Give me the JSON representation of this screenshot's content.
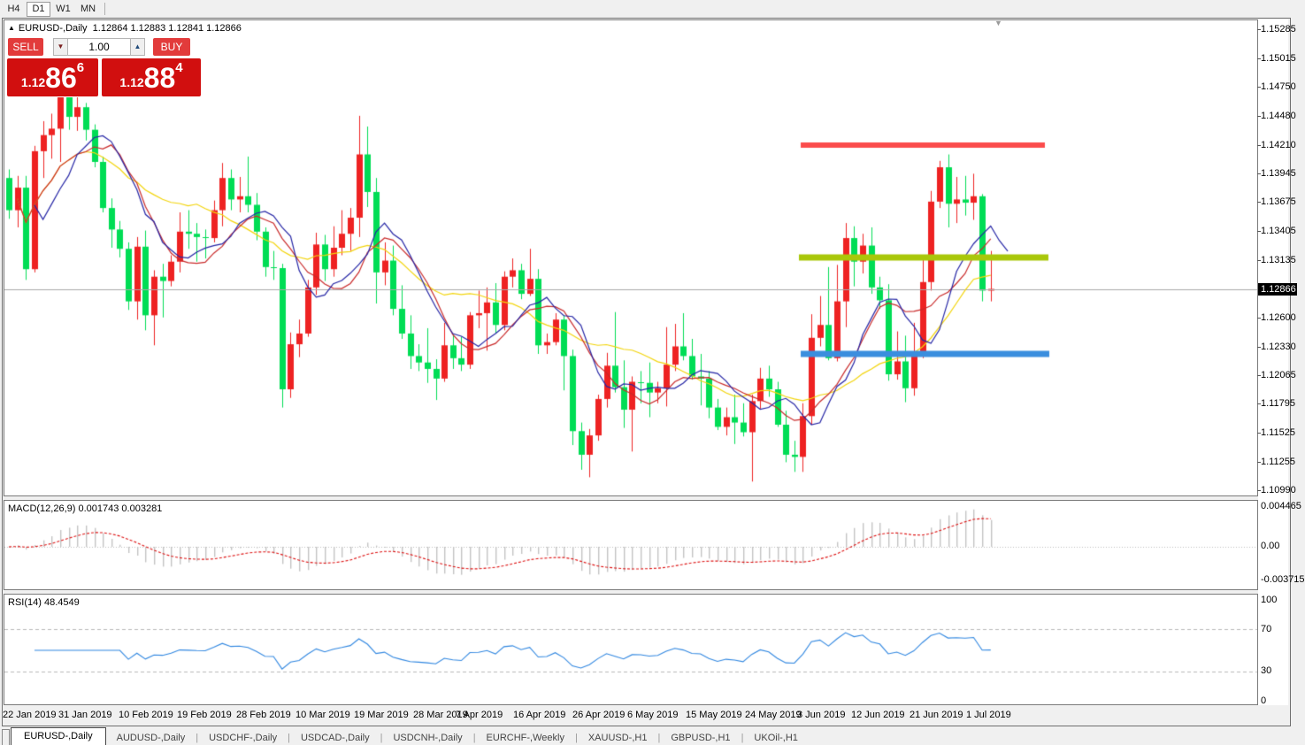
{
  "toolbar": {
    "timeframes": [
      {
        "label": "H4",
        "active": false
      },
      {
        "label": "D1",
        "active": true
      },
      {
        "label": "W1",
        "active": false
      },
      {
        "label": "MN",
        "active": false
      }
    ]
  },
  "header": {
    "symbol": "EURUSD-,Daily",
    "ohlc": "1.12864 1.12883 1.12841 1.12866"
  },
  "trade_panel": {
    "sell_label": "SELL",
    "buy_label": "BUY",
    "volume": "1.00",
    "sell_price": {
      "prefix": "1.12",
      "main": "86",
      "pips": "6"
    },
    "buy_price": {
      "prefix": "1.12",
      "main": "88",
      "pips": "4"
    },
    "button_color": "#e23b3b",
    "price_box_color": "#d10f0f"
  },
  "price_axis": {
    "labels": [
      "1.15285",
      "1.15015",
      "1.14750",
      "1.14480",
      "1.14210",
      "1.13945",
      "1.13675",
      "1.13405",
      "1.13135",
      "1.12600",
      "1.12330",
      "1.12065",
      "1.11795",
      "1.11525",
      "1.11255",
      "1.10990"
    ],
    "current": "1.12866"
  },
  "date_axis": {
    "labels": [
      "22 Jan 2019",
      "31 Jan 2019",
      "10 Feb 2019",
      "19 Feb 2019",
      "28 Feb 2019",
      "10 Mar 2019",
      "19 Mar 2019",
      "28 Mar 2019",
      "7 Apr 2019",
      "16 Apr 2019",
      "26 Apr 2019",
      "6 May 2019",
      "15 May 2019",
      "24 May 2019",
      "3 Jun 2019",
      "12 Jun 2019",
      "21 Jun 2019",
      "1 Jul 2019"
    ]
  },
  "indicators": {
    "macd": {
      "title": "MACD(12,26,9)",
      "values": "0.001743 0.003281",
      "axis": [
        "0.004465",
        "0.00",
        "-0.003715"
      ],
      "histogram_color": "#c3c3c3",
      "signal_color": "#dd1111"
    },
    "rsi": {
      "title": "RSI(14)",
      "value": "48.4549",
      "axis": [
        "100",
        "70",
        "30",
        "0"
      ],
      "levels": [
        70,
        30
      ],
      "color": "#2f86e0"
    }
  },
  "tabs": {
    "items": [
      {
        "label": "EURUSD-,Daily",
        "active": true
      },
      {
        "label": "AUDUSD-,Daily",
        "active": false
      },
      {
        "label": "USDCHF-,Daily",
        "active": false
      },
      {
        "label": "USDCAD-,Daily",
        "active": false
      },
      {
        "label": "USDCNH-,Daily",
        "active": false
      },
      {
        "label": "EURCHF-,Weekly",
        "active": false
      },
      {
        "label": "XAUUSD-,H1",
        "active": false
      },
      {
        "label": "GBPUSD-,H1",
        "active": false
      },
      {
        "label": "UKOil-,H1",
        "active": false
      }
    ]
  },
  "chart_data": {
    "type": "candlestick",
    "symbol": "EURUSD-",
    "timeframe": "Daily",
    "title": "EURUSD-,Daily",
    "ohlc_display": {
      "open": "1.12864",
      "high": "1.12883",
      "low": "1.12841",
      "close": "1.12866"
    },
    "ylim": [
      1.1094,
      1.1537
    ],
    "x_range": [
      "22 Jan 2019",
      "2 Jul 2019"
    ],
    "bull_color": "#ee2222",
    "bear_color": "#00dd55",
    "bid_line_color": "#a8a8a8",
    "current_price": 1.12866,
    "hlines": [
      {
        "price": 1.1421,
        "color": "#fb4b4b",
        "role": "resistance"
      },
      {
        "price": 1.1316,
        "color": "#a9c70a",
        "role": "mid-level"
      },
      {
        "price": 1.1226,
        "color": "#3a8ede",
        "role": "support"
      }
    ],
    "moving_averages": [
      {
        "name": "fast",
        "color": "#2525a5",
        "period": 8,
        "shift": 2
      },
      {
        "name": "medium",
        "color": "#c92a2a",
        "period": 10,
        "shift": 0
      },
      {
        "name": "slow",
        "color": "#f2d40c",
        "period": 20,
        "shift": 0
      }
    ],
    "candles": [
      [
        1.139,
        1.1398,
        1.1352,
        1.136
      ],
      [
        1.136,
        1.1392,
        1.1344,
        1.1381
      ],
      [
        1.1381,
        1.1392,
        1.1295,
        1.1305
      ],
      [
        1.1305,
        1.142,
        1.1302,
        1.1415
      ],
      [
        1.1415,
        1.1443,
        1.139,
        1.143
      ],
      [
        1.143,
        1.145,
        1.1408,
        1.1436
      ],
      [
        1.1436,
        1.1502,
        1.1405,
        1.148
      ],
      [
        1.148,
        1.1514,
        1.1435,
        1.1447
      ],
      [
        1.1447,
        1.1489,
        1.1434,
        1.1456
      ],
      [
        1.1456,
        1.146,
        1.1425,
        1.1435
      ],
      [
        1.1435,
        1.144,
        1.14,
        1.1405
      ],
      [
        1.1405,
        1.141,
        1.1358,
        1.1362
      ],
      [
        1.1362,
        1.1371,
        1.1325,
        1.1342
      ],
      [
        1.1342,
        1.135,
        1.1316,
        1.1324
      ],
      [
        1.1324,
        1.133,
        1.1267,
        1.1275
      ],
      [
        1.1275,
        1.1335,
        1.1258,
        1.1326
      ],
      [
        1.1326,
        1.1341,
        1.1248,
        1.1262
      ],
      [
        1.1262,
        1.1304,
        1.1234,
        1.1298
      ],
      [
        1.1298,
        1.131,
        1.126,
        1.1294
      ],
      [
        1.1294,
        1.1318,
        1.1289,
        1.1312
      ],
      [
        1.1312,
        1.1358,
        1.1302,
        1.134
      ],
      [
        1.134,
        1.136,
        1.1324,
        1.1338
      ],
      [
        1.1338,
        1.1348,
        1.1312,
        1.1335
      ],
      [
        1.1335,
        1.1342,
        1.1315,
        1.1334
      ],
      [
        1.1334,
        1.1369,
        1.133,
        1.136
      ],
      [
        1.136,
        1.1404,
        1.1345,
        1.139
      ],
      [
        1.139,
        1.1398,
        1.136,
        1.137
      ],
      [
        1.137,
        1.1391,
        1.1358,
        1.1373
      ],
      [
        1.1373,
        1.141,
        1.1358,
        1.1365
      ],
      [
        1.1365,
        1.1376,
        1.1332,
        1.134
      ],
      [
        1.134,
        1.1344,
        1.1298,
        1.1307
      ],
      [
        1.1307,
        1.1322,
        1.1295,
        1.1306
      ],
      [
        1.1306,
        1.131,
        1.1176,
        1.1193
      ],
      [
        1.1193,
        1.1246,
        1.1185,
        1.1235
      ],
      [
        1.1235,
        1.1258,
        1.1223,
        1.1245
      ],
      [
        1.1245,
        1.1295,
        1.1242,
        1.1288
      ],
      [
        1.1288,
        1.1339,
        1.1281,
        1.1328
      ],
      [
        1.1328,
        1.1337,
        1.1294,
        1.1305
      ],
      [
        1.1305,
        1.1345,
        1.1298,
        1.1325
      ],
      [
        1.1325,
        1.136,
        1.1318,
        1.1338
      ],
      [
        1.1338,
        1.1362,
        1.1322,
        1.1353
      ],
      [
        1.1353,
        1.1448,
        1.1335,
        1.1412
      ],
      [
        1.1412,
        1.1438,
        1.1363,
        1.1377
      ],
      [
        1.1377,
        1.139,
        1.1273,
        1.1302
      ],
      [
        1.1302,
        1.133,
        1.129,
        1.1313
      ],
      [
        1.1313,
        1.1327,
        1.1262,
        1.1268
      ],
      [
        1.1268,
        1.129,
        1.124,
        1.1245
      ],
      [
        1.1245,
        1.1262,
        1.1212,
        1.1224
      ],
      [
        1.1224,
        1.1235,
        1.121,
        1.1218
      ],
      [
        1.1218,
        1.125,
        1.1199,
        1.1212
      ],
      [
        1.1212,
        1.1221,
        1.1183,
        1.1203
      ],
      [
        1.1203,
        1.1255,
        1.12,
        1.1234
      ],
      [
        1.1234,
        1.1244,
        1.1212,
        1.1222
      ],
      [
        1.1222,
        1.1242,
        1.121,
        1.1216
      ],
      [
        1.1216,
        1.1265,
        1.1212,
        1.1262
      ],
      [
        1.1262,
        1.1285,
        1.125,
        1.1264
      ],
      [
        1.1264,
        1.1288,
        1.1229,
        1.1274
      ],
      [
        1.1274,
        1.1292,
        1.1245,
        1.1253
      ],
      [
        1.1253,
        1.1303,
        1.1248,
        1.1298
      ],
      [
        1.1298,
        1.1315,
        1.1288,
        1.1304
      ],
      [
        1.1304,
        1.131,
        1.1277,
        1.1282
      ],
      [
        1.1282,
        1.1324,
        1.128,
        1.1296
      ],
      [
        1.1296,
        1.1305,
        1.1226,
        1.1234
      ],
      [
        1.1234,
        1.1245,
        1.1226,
        1.1237
      ],
      [
        1.1237,
        1.1264,
        1.1234,
        1.1258
      ],
      [
        1.1258,
        1.1262,
        1.1192,
        1.1224
      ],
      [
        1.1224,
        1.123,
        1.1141,
        1.1154
      ],
      [
        1.1154,
        1.1162,
        1.1118,
        1.1132
      ],
      [
        1.1132,
        1.1156,
        1.1111,
        1.115
      ],
      [
        1.115,
        1.1188,
        1.1145,
        1.1184
      ],
      [
        1.1184,
        1.1227,
        1.1176,
        1.1215
      ],
      [
        1.1215,
        1.1265,
        1.119,
        1.1195
      ],
      [
        1.1195,
        1.122,
        1.1157,
        1.1174
      ],
      [
        1.1174,
        1.1205,
        1.1135,
        1.12
      ],
      [
        1.12,
        1.121,
        1.118,
        1.1199
      ],
      [
        1.1199,
        1.1218,
        1.1167,
        1.119
      ],
      [
        1.119,
        1.12,
        1.118,
        1.1194
      ],
      [
        1.1194,
        1.1251,
        1.1177,
        1.1216
      ],
      [
        1.1216,
        1.1254,
        1.121,
        1.1233
      ],
      [
        1.1233,
        1.1264,
        1.122,
        1.1224
      ],
      [
        1.1224,
        1.124,
        1.1202,
        1.1205
      ],
      [
        1.1205,
        1.1226,
        1.1178,
        1.1203
      ],
      [
        1.1203,
        1.121,
        1.1166,
        1.1176
      ],
      [
        1.1176,
        1.1184,
        1.1155,
        1.1158
      ],
      [
        1.1158,
        1.1176,
        1.115,
        1.1167
      ],
      [
        1.1167,
        1.1188,
        1.1142,
        1.1162
      ],
      [
        1.1162,
        1.118,
        1.1149,
        1.1153
      ],
      [
        1.1153,
        1.1188,
        1.1107,
        1.1182
      ],
      [
        1.1182,
        1.1213,
        1.1175,
        1.1203
      ],
      [
        1.1203,
        1.1215,
        1.1186,
        1.1193
      ],
      [
        1.1193,
        1.12,
        1.1158,
        1.116
      ],
      [
        1.116,
        1.1173,
        1.1125,
        1.1132
      ],
      [
        1.1132,
        1.1145,
        1.1116,
        1.113
      ],
      [
        1.113,
        1.118,
        1.1116,
        1.1168
      ],
      [
        1.1168,
        1.1263,
        1.116,
        1.1241
      ],
      [
        1.1241,
        1.128,
        1.1233,
        1.1253
      ],
      [
        1.1253,
        1.1307,
        1.122,
        1.1222
      ],
      [
        1.1222,
        1.1309,
        1.1219,
        1.1275
      ],
      [
        1.1275,
        1.1348,
        1.1251,
        1.1334
      ],
      [
        1.1334,
        1.1345,
        1.1289,
        1.1312
      ],
      [
        1.1312,
        1.1338,
        1.1301,
        1.1327
      ],
      [
        1.1327,
        1.1344,
        1.1282,
        1.1288
      ],
      [
        1.1288,
        1.1298,
        1.1268,
        1.1276
      ],
      [
        1.1276,
        1.1291,
        1.1201,
        1.1207
      ],
      [
        1.1207,
        1.1247,
        1.1202,
        1.1219
      ],
      [
        1.1219,
        1.1243,
        1.1181,
        1.1194
      ],
      [
        1.1194,
        1.1255,
        1.1187,
        1.1225
      ],
      [
        1.1225,
        1.1318,
        1.1222,
        1.1293
      ],
      [
        1.1293,
        1.1378,
        1.1285,
        1.1368
      ],
      [
        1.1368,
        1.1406,
        1.1362,
        1.14
      ],
      [
        1.14,
        1.1412,
        1.1344,
        1.1366
      ],
      [
        1.1366,
        1.1391,
        1.1348,
        1.137
      ],
      [
        1.137,
        1.1392,
        1.1355,
        1.1367
      ],
      [
        1.1367,
        1.1394,
        1.1351,
        1.1373
      ],
      [
        1.1373,
        1.1375,
        1.1275,
        1.1285
      ],
      [
        1.1285,
        1.1322,
        1.1275,
        1.12866
      ]
    ]
  }
}
